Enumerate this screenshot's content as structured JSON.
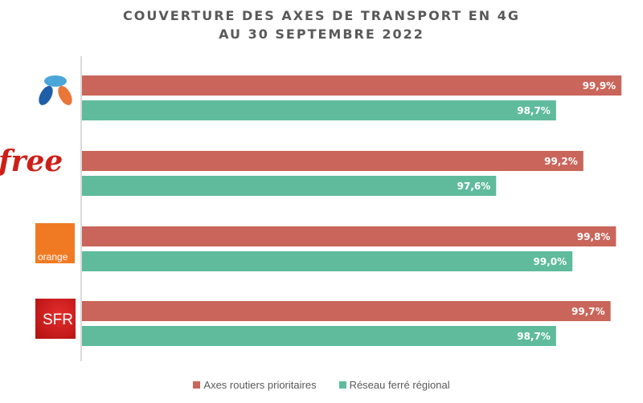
{
  "chart_data": {
    "type": "bar",
    "orientation": "horizontal",
    "title": "COUVERTURE DES AXES DE TRANSPORT EN 4G",
    "subtitle": "AU 30 SEPTEMBRE 2022",
    "categories": [
      "Bouygues Telecom",
      "Free",
      "Orange",
      "SFR"
    ],
    "series": [
      {
        "name": "Axes routiers prioritaires",
        "color": "#c9655a",
        "values": [
          99.9,
          99.2,
          99.8,
          99.7
        ],
        "labels": [
          "99,9%",
          "99,2%",
          "99,8%",
          "99,7%"
        ]
      },
      {
        "name": "Réseau ferré régional",
        "color": "#5fbb9c",
        "values": [
          98.7,
          97.6,
          99.0,
          98.7
        ],
        "labels": [
          "98,7%",
          "97,6%",
          "99,0%",
          "98,7%"
        ]
      }
    ],
    "xlim": [
      90,
      100
    ],
    "legend": "bottom",
    "grid": false
  },
  "logos": {
    "free": "free",
    "orange": "orange",
    "sfr": "SFR"
  }
}
